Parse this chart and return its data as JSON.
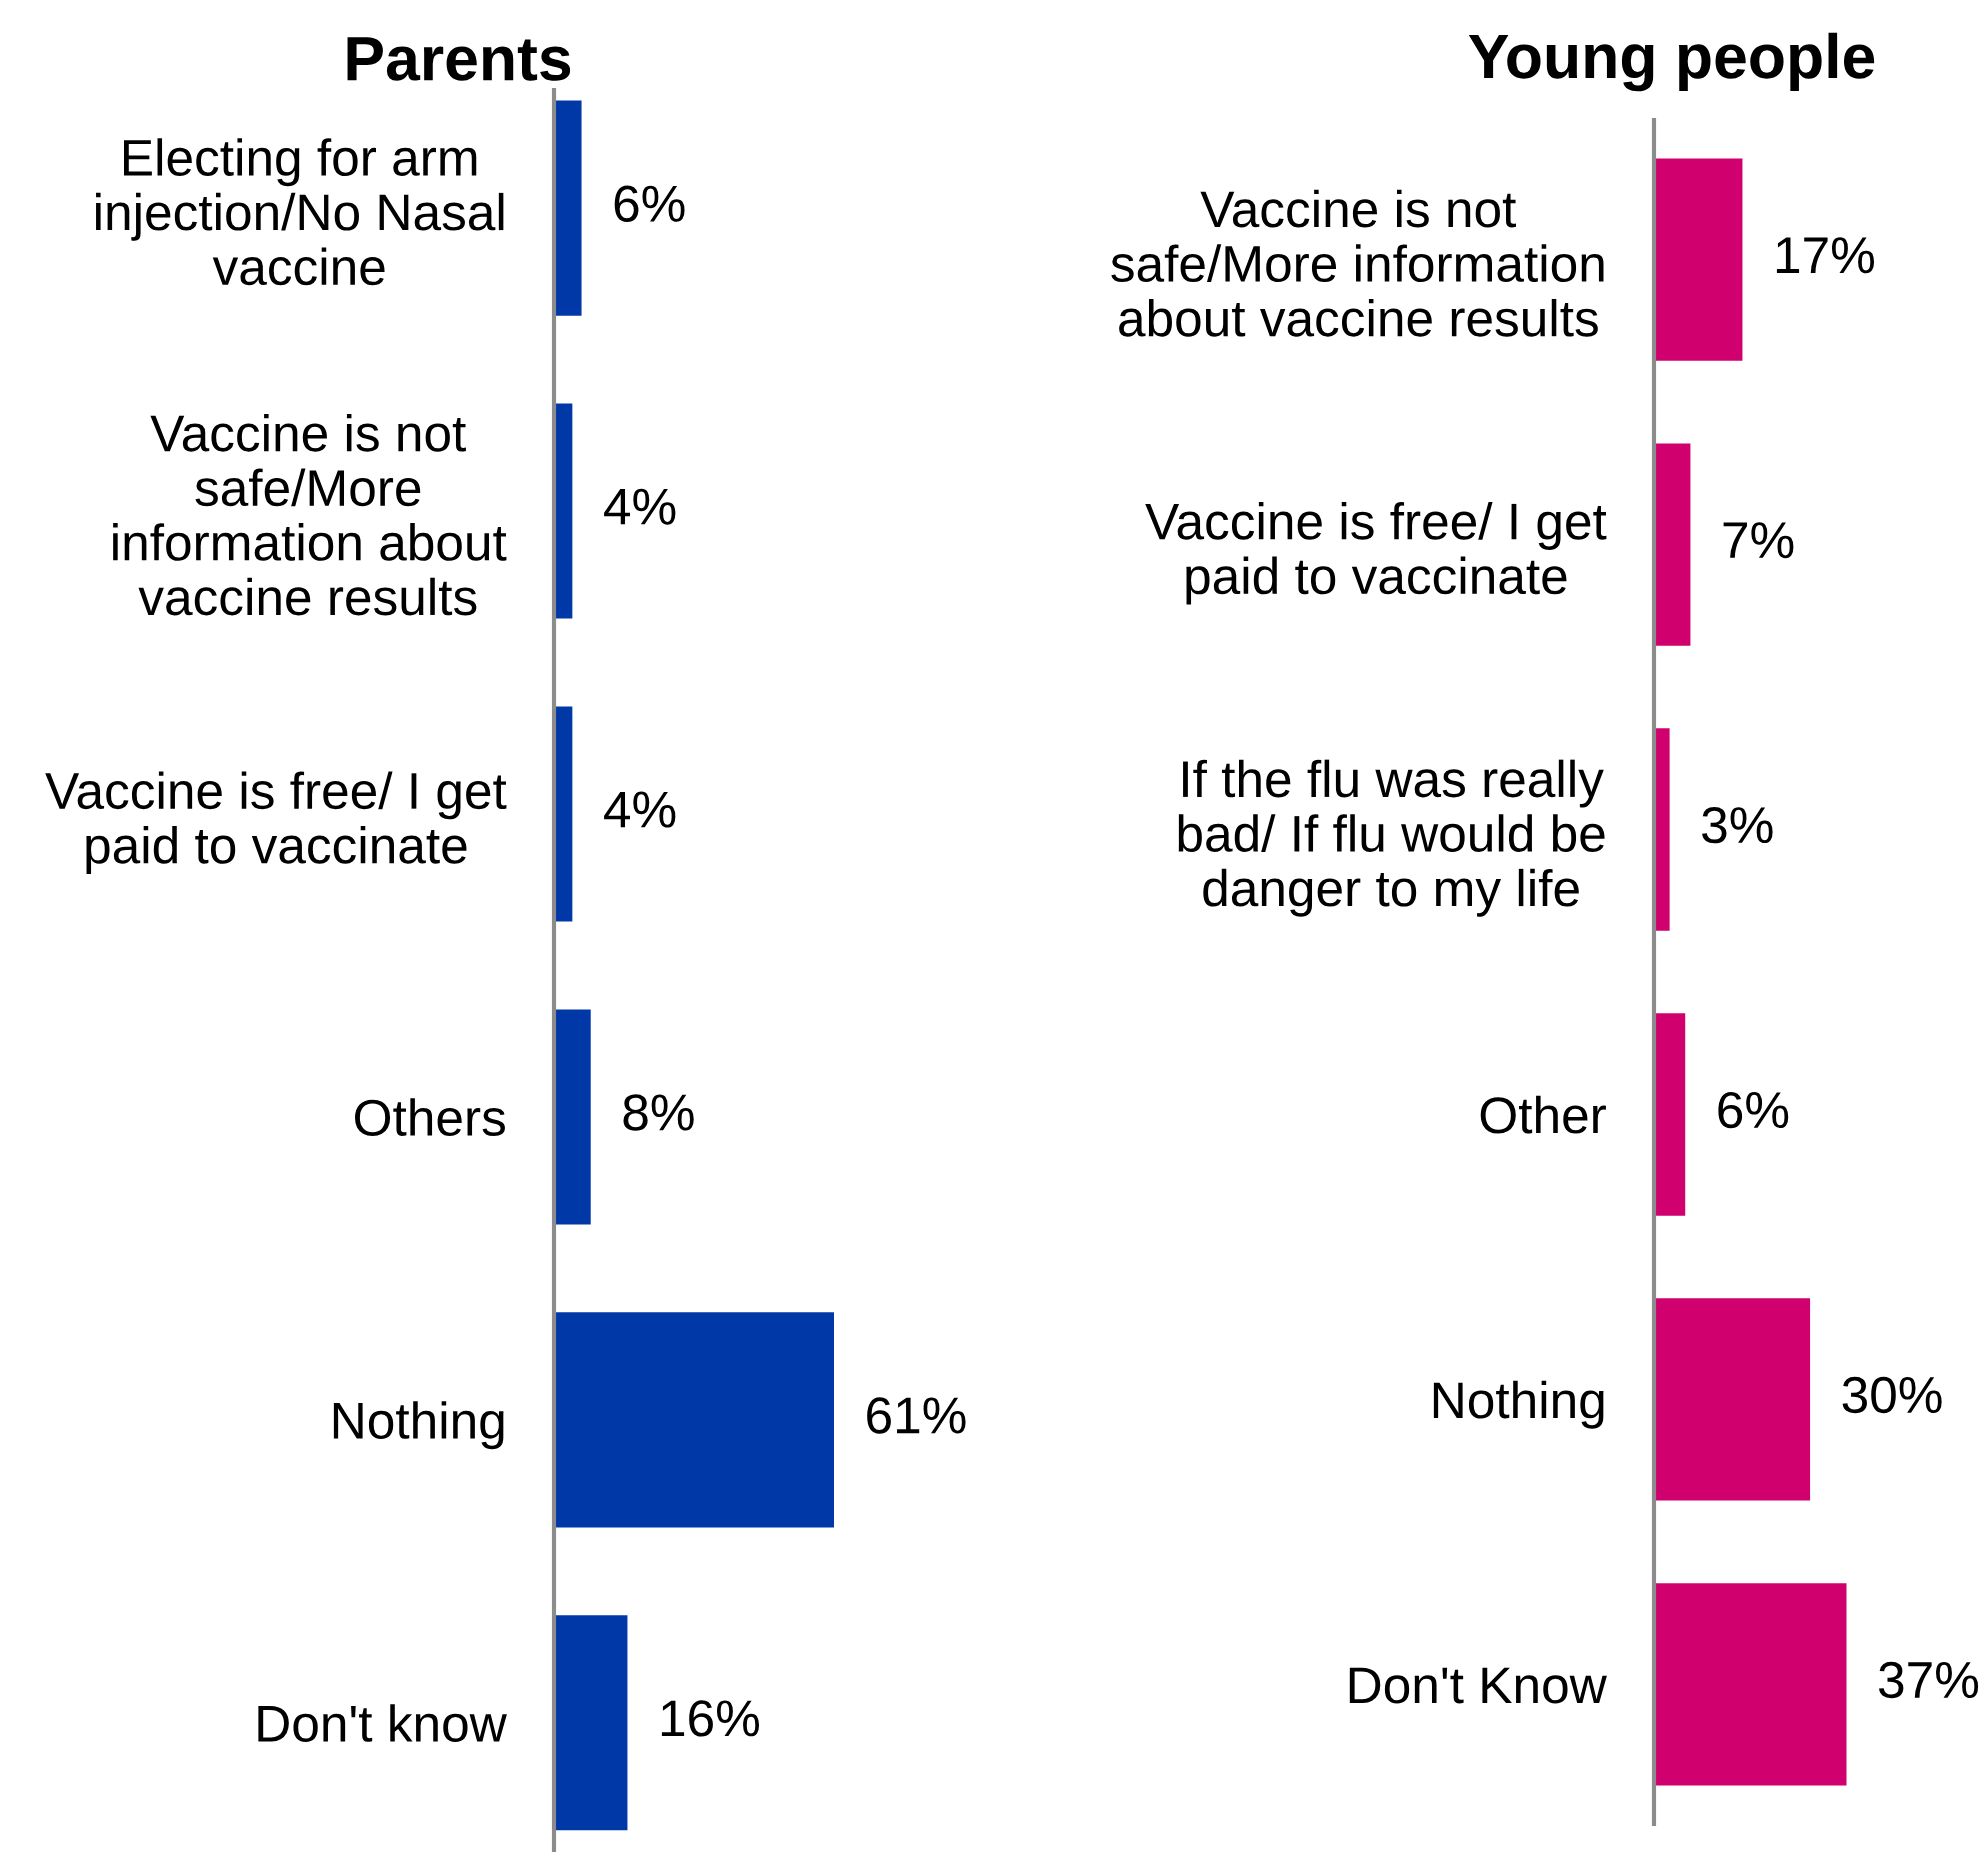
{
  "chart_data": [
    {
      "type": "bar",
      "orientation": "horizontal",
      "title": "Parents",
      "categories": [
        "Electing for arm\ninjection/No Nasal\nvaccine",
        "Vaccine is not\nsafe/More\ninformation about\nvaccine results",
        "Vaccine is free/ I get\npaid to vaccinate",
        "Others",
        "Nothing",
        "Don't know"
      ],
      "values": [
        6,
        4,
        4,
        8,
        61,
        16
      ],
      "value_labels": [
        "6%",
        "4%",
        "4%",
        "8%",
        "61%",
        "16%"
      ],
      "color": "#0038a8",
      "tick_labels": "y"
    },
    {
      "type": "bar",
      "orientation": "horizontal",
      "title": "Young people",
      "categories": [
        "Vaccine is not\nsafe/More information\nabout vaccine results",
        "Vaccine is free/ I get\npaid to vaccinate",
        "If the flu was really\nbad/ If flu would be\ndanger to my life",
        "Other",
        "Nothing",
        "Don't Know"
      ],
      "values": [
        17,
        7,
        3,
        6,
        30,
        37
      ],
      "value_labels": [
        "17%",
        "7%",
        "3%",
        "6%",
        "30%",
        "37%"
      ],
      "color": "#d0006f",
      "tick_labels": "y"
    }
  ]
}
